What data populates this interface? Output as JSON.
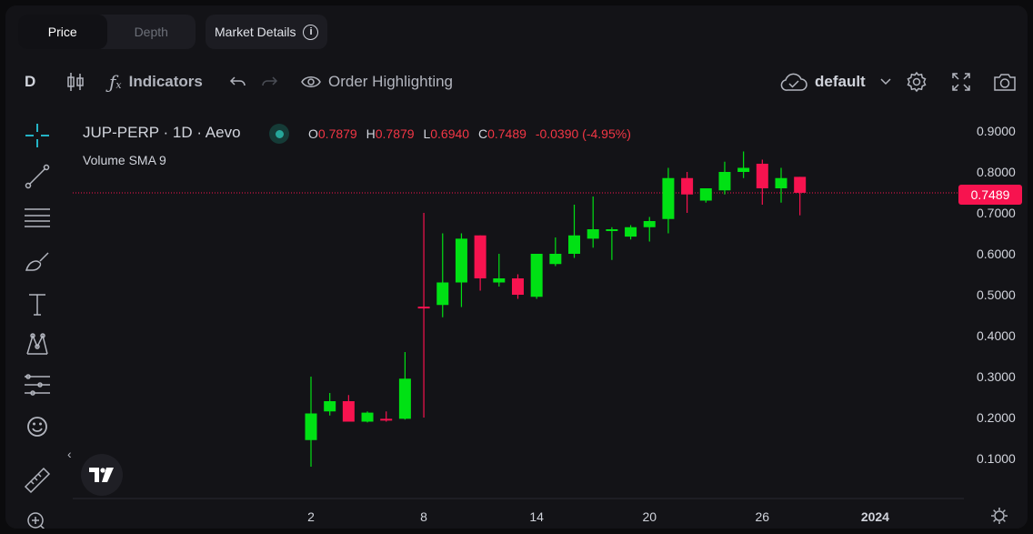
{
  "tabs": [
    {
      "label": "Price",
      "active": true
    },
    {
      "label": "Depth",
      "active": false
    }
  ],
  "market_details": {
    "label": "Market Details",
    "icon": "info-icon"
  },
  "toolbar": {
    "interval": "D",
    "indicators_label": "Indicators",
    "order_highlighting_label": "Order Highlighting",
    "layout_name": "default"
  },
  "legend": {
    "symbol": "JUP-PERP",
    "interval": "1D",
    "exchange": "Aevo",
    "title": "JUP-PERP · 1D · Aevo",
    "ohlc": {
      "O": "0.7879",
      "H": "0.7879",
      "L": "0.6940",
      "C": "0.7489",
      "change": "-0.0390 (-4.95%)"
    },
    "volume_label": "Volume SMA 9"
  },
  "colors": {
    "up": "#00e114",
    "down": "#f7134f",
    "accent": "#26a69a"
  },
  "chart_data": {
    "type": "candlestick",
    "title": "JUP-PERP · 1D · Aevo",
    "ylim": [
      0.0,
      0.9
    ],
    "y_ticks": [
      "0.9000",
      "0.8000",
      "0.7000",
      "0.6000",
      "0.5000",
      "0.4000",
      "0.3000",
      "0.2000",
      "0.1000"
    ],
    "x_ticks": [
      {
        "label": "2",
        "day": 2
      },
      {
        "label": "8",
        "day": 8
      },
      {
        "label": "14",
        "day": 14
      },
      {
        "label": "20",
        "day": 20
      },
      {
        "label": "26",
        "day": 26
      },
      {
        "label": "2024",
        "day": 32
      }
    ],
    "last_price": "0.7489",
    "candles": [
      {
        "day": 2,
        "o": 0.145,
        "h": 0.3,
        "l": 0.08,
        "c": 0.21
      },
      {
        "day": 3,
        "o": 0.215,
        "h": 0.26,
        "l": 0.205,
        "c": 0.24
      },
      {
        "day": 4,
        "o": 0.24,
        "h": 0.255,
        "l": 0.19,
        "c": 0.19
      },
      {
        "day": 5,
        "o": 0.19,
        "h": 0.215,
        "l": 0.188,
        "c": 0.212
      },
      {
        "day": 6,
        "o": 0.197,
        "h": 0.215,
        "l": 0.19,
        "c": 0.193
      },
      {
        "day": 7,
        "o": 0.197,
        "h": 0.36,
        "l": 0.195,
        "c": 0.295
      },
      {
        "day": 8,
        "o": 0.471,
        "h": 0.7,
        "l": 0.2,
        "c": 0.469
      },
      {
        "day": 9,
        "o": 0.475,
        "h": 0.65,
        "l": 0.445,
        "c": 0.53
      },
      {
        "day": 10,
        "o": 0.53,
        "h": 0.65,
        "l": 0.47,
        "c": 0.637
      },
      {
        "day": 11,
        "o": 0.645,
        "h": 0.645,
        "l": 0.51,
        "c": 0.54
      },
      {
        "day": 12,
        "o": 0.53,
        "h": 0.6,
        "l": 0.52,
        "c": 0.54
      },
      {
        "day": 13,
        "o": 0.54,
        "h": 0.55,
        "l": 0.49,
        "c": 0.5
      },
      {
        "day": 14,
        "o": 0.495,
        "h": 0.6,
        "l": 0.49,
        "c": 0.6
      },
      {
        "day": 15,
        "o": 0.575,
        "h": 0.64,
        "l": 0.57,
        "c": 0.6
      },
      {
        "day": 16,
        "o": 0.6,
        "h": 0.72,
        "l": 0.59,
        "c": 0.645
      },
      {
        "day": 17,
        "o": 0.637,
        "h": 0.74,
        "l": 0.615,
        "c": 0.66
      },
      {
        "day": 18,
        "o": 0.657,
        "h": 0.665,
        "l": 0.585,
        "c": 0.66
      },
      {
        "day": 19,
        "o": 0.642,
        "h": 0.67,
        "l": 0.635,
        "c": 0.665
      },
      {
        "day": 20,
        "o": 0.665,
        "h": 0.69,
        "l": 0.63,
        "c": 0.68
      },
      {
        "day": 21,
        "o": 0.685,
        "h": 0.81,
        "l": 0.65,
        "c": 0.785
      },
      {
        "day": 22,
        "o": 0.785,
        "h": 0.8,
        "l": 0.7,
        "c": 0.745
      },
      {
        "day": 23,
        "o": 0.73,
        "h": 0.76,
        "l": 0.725,
        "c": 0.76
      },
      {
        "day": 24,
        "o": 0.755,
        "h": 0.825,
        "l": 0.745,
        "c": 0.8
      },
      {
        "day": 25,
        "o": 0.8,
        "h": 0.85,
        "l": 0.785,
        "c": 0.81
      },
      {
        "day": 26,
        "o": 0.82,
        "h": 0.83,
        "l": 0.72,
        "c": 0.76
      },
      {
        "day": 27,
        "o": 0.76,
        "h": 0.81,
        "l": 0.725,
        "c": 0.785
      },
      {
        "day": 28,
        "o": 0.788,
        "h": 0.788,
        "l": 0.694,
        "c": 0.749
      }
    ]
  }
}
